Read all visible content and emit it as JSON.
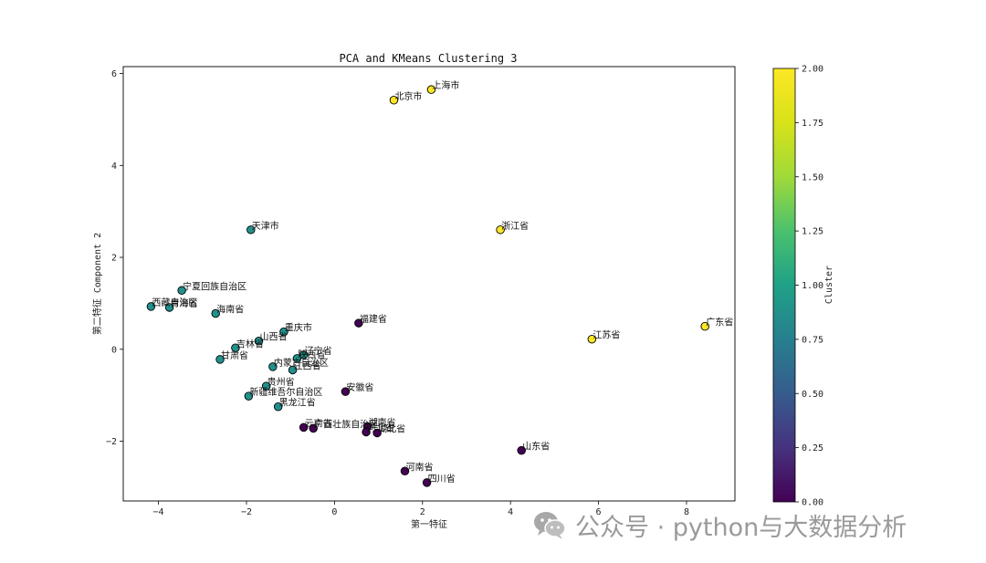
{
  "chart_data": {
    "type": "scatter",
    "title": "PCA and KMeans Clustering 3",
    "xlabel": "第一特征",
    "ylabel": "第二特征 Component 2",
    "xlim": [
      -4.8,
      9.1
    ],
    "ylim": [
      -3.3,
      6.15
    ],
    "xticks": [
      -4,
      -2,
      0,
      2,
      4,
      6,
      8
    ],
    "yticks": [
      -2,
      0,
      2,
      4,
      6
    ],
    "grid": false,
    "colorbar": {
      "label": "Cluster",
      "range": [
        0,
        2
      ],
      "colormap": "viridis",
      "ticks": [
        "0.00",
        "0.25",
        "0.50",
        "0.75",
        "1.00",
        "1.25",
        "1.50",
        "1.75",
        "2.00"
      ]
    },
    "points": [
      {
        "label": "上海市",
        "x": 2.2,
        "y": 5.65,
        "cluster": 2
      },
      {
        "label": "北京市",
        "x": 1.35,
        "y": 5.42,
        "cluster": 2
      },
      {
        "label": "浙江省",
        "x": 3.77,
        "y": 2.6,
        "cluster": 2
      },
      {
        "label": "江苏省",
        "x": 5.85,
        "y": 0.22,
        "cluster": 2
      },
      {
        "label": "广东省",
        "x": 8.42,
        "y": 0.5,
        "cluster": 2
      },
      {
        "label": "天津市",
        "x": -1.9,
        "y": 2.6,
        "cluster": 1
      },
      {
        "label": "宁夏回族自治区",
        "x": -3.47,
        "y": 1.28,
        "cluster": 1
      },
      {
        "label": "西藏自治区",
        "x": -4.17,
        "y": 0.93,
        "cluster": 1
      },
      {
        "label": "青海省",
        "x": -3.75,
        "y": 0.91,
        "cluster": 1
      },
      {
        "label": "海南省",
        "x": -2.7,
        "y": 0.78,
        "cluster": 1
      },
      {
        "label": "重庆市",
        "x": -1.15,
        "y": 0.38,
        "cluster": 1
      },
      {
        "label": "山西省",
        "x": -1.72,
        "y": 0.18,
        "cluster": 1
      },
      {
        "label": "吉林省",
        "x": -2.25,
        "y": 0.03,
        "cluster": 1
      },
      {
        "label": "辽宁省",
        "x": -0.7,
        "y": -0.12,
        "cluster": 1
      },
      {
        "label": "陕西省",
        "x": -0.85,
        "y": -0.2,
        "cluster": 1
      },
      {
        "label": "甘肃省",
        "x": -2.6,
        "y": -0.22,
        "cluster": 1
      },
      {
        "label": "内蒙古自治区",
        "x": -1.4,
        "y": -0.38,
        "cluster": 1
      },
      {
        "label": "江西省",
        "x": -0.95,
        "y": -0.45,
        "cluster": 1
      },
      {
        "label": "贵州省",
        "x": -1.55,
        "y": -0.8,
        "cluster": 1
      },
      {
        "label": "新疆维吾尔自治区",
        "x": -1.95,
        "y": -1.02,
        "cluster": 1
      },
      {
        "label": "黑龙江省",
        "x": -1.28,
        "y": -1.25,
        "cluster": 1
      },
      {
        "label": "福建省",
        "x": 0.55,
        "y": 0.57,
        "cluster": 0
      },
      {
        "label": "安徽省",
        "x": 0.25,
        "y": -0.92,
        "cluster": 0
      },
      {
        "label": "云南省",
        "x": -0.7,
        "y": -1.7,
        "cluster": 0
      },
      {
        "label": "广西壮族自治区",
        "x": -0.48,
        "y": -1.72,
        "cluster": 0
      },
      {
        "label": "湖南省",
        "x": 0.75,
        "y": -1.68,
        "cluster": 0
      },
      {
        "label": "河北省",
        "x": 0.72,
        "y": -1.8,
        "cluster": 0
      },
      {
        "label": "湖北省",
        "x": 0.97,
        "y": -1.82,
        "cluster": 0
      },
      {
        "label": "山东省",
        "x": 4.25,
        "y": -2.2,
        "cluster": 0
      },
      {
        "label": "河南省",
        "x": 1.6,
        "y": -2.65,
        "cluster": 0
      },
      {
        "label": "四川省",
        "x": 2.1,
        "y": -2.9,
        "cluster": 0
      }
    ]
  },
  "cluster_colors": [
    "#440154",
    "#21918c",
    "#fde725"
  ],
  "watermark": {
    "text": "公众号 · python与大数据分析",
    "icon": "wechat-icon"
  }
}
